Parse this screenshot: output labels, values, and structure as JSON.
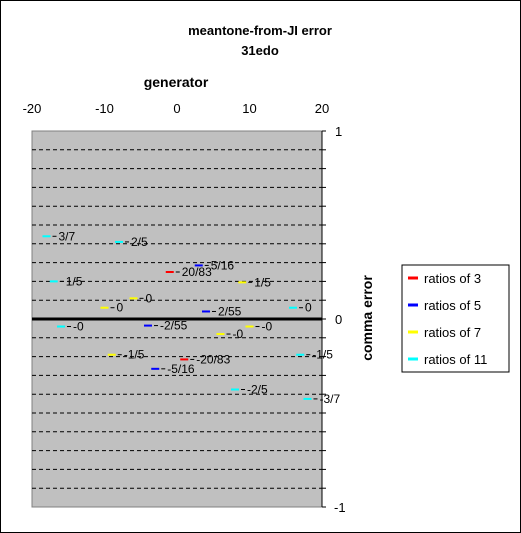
{
  "chart_data": {
    "type": "scatter",
    "title": "meantone-from-JI error",
    "subtitle": "31edo",
    "xlabel": "generator",
    "ylabel": "comma error",
    "xlim": [
      -20,
      20
    ],
    "ylim": [
      -1,
      1
    ],
    "x_ticks": [
      "-20",
      "-10",
      "0",
      "10",
      "20"
    ],
    "y_ticks": [
      "1",
      "0",
      "-1"
    ],
    "grid": "dashed horizontal",
    "legend_position": "right",
    "series": [
      {
        "name": "ratios of 3",
        "color": "#ff0000",
        "points": [
          {
            "x": -1,
            "y": 0.25,
            "label": "20/83"
          },
          {
            "x": 1,
            "y": -0.215,
            "label": "-20/83"
          }
        ]
      },
      {
        "name": "ratios of 5",
        "color": "#0000ff",
        "points": [
          {
            "x": 3,
            "y": 0.285,
            "label": "5/16"
          },
          {
            "x": 4,
            "y": 0.04,
            "label": "2/55"
          },
          {
            "x": -4,
            "y": -0.035,
            "label": "-2/55"
          },
          {
            "x": -3,
            "y": -0.265,
            "label": "-5/16"
          }
        ]
      },
      {
        "name": "ratios of 7",
        "color": "#ffff00",
        "points": [
          {
            "x": -10,
            "y": 0.06,
            "label": "0"
          },
          {
            "x": -6,
            "y": 0.11,
            "label": "0"
          },
          {
            "x": 9,
            "y": 0.195,
            "label": "1/5"
          },
          {
            "x": 6,
            "y": -0.08,
            "label": "-0"
          },
          {
            "x": 10,
            "y": -0.04,
            "label": "-0"
          },
          {
            "x": -9,
            "y": -0.19,
            "label": "-1/5"
          }
        ]
      },
      {
        "name": "ratios of 11",
        "color": "#00ffff",
        "points": [
          {
            "x": -18,
            "y": 0.44,
            "label": "3/7"
          },
          {
            "x": -8,
            "y": 0.41,
            "label": "2/5"
          },
          {
            "x": -17,
            "y": 0.2,
            "label": "1/5"
          },
          {
            "x": 16,
            "y": 0.06,
            "label": "0"
          },
          {
            "x": -16,
            "y": -0.04,
            "label": "-0"
          },
          {
            "x": 17,
            "y": -0.19,
            "label": "-1/5"
          },
          {
            "x": 8,
            "y": -0.375,
            "label": "-2/5"
          },
          {
            "x": 18,
            "y": -0.425,
            "label": "-3/7"
          }
        ]
      }
    ]
  }
}
